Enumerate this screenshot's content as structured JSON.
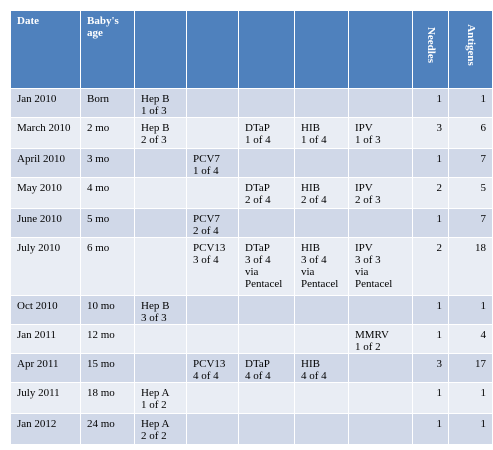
{
  "headers": [
    "Date",
    "Baby's age",
    "",
    "",
    "",
    "",
    "",
    "Needles",
    "Antigens"
  ],
  "rows": [
    [
      "Jan 2010",
      "Born",
      "Hep B\n1 of 3",
      "",
      "",
      "",
      "",
      "1",
      "1"
    ],
    [
      "March 2010",
      "2 mo",
      "Hep B\n2 of 3",
      "",
      "DTaP\n1 of 4",
      "HIB\n1 of 4",
      "IPV\n1 of 3",
      "3",
      "6"
    ],
    [
      "April 2010",
      "3 mo",
      "",
      "PCV7\n1 of 4",
      "",
      "",
      "",
      "1",
      "7"
    ],
    [
      "May 2010",
      "4 mo",
      "",
      "",
      "DTaP\n2 of 4",
      "HIB\n2 of 4",
      "IPV\n2 of 3",
      "2",
      "5"
    ],
    [
      "June 2010",
      "5 mo",
      "",
      "PCV7\n2 of 4",
      "",
      "",
      "",
      "1",
      "7"
    ],
    [
      "July 2010",
      "6 mo",
      "",
      "PCV13\n3 of 4",
      "DTaP\n3 of 4\nvia\nPentacel",
      "HIB\n3 of 4\nvia\nPentacel",
      "IPV\n3 of 3\nvia\nPentacel",
      "2",
      "18"
    ],
    [
      "Oct 2010",
      "10 mo",
      "Hep B\n3 of 3",
      "",
      "",
      "",
      "",
      "1",
      "1"
    ],
    [
      "Jan 2011",
      "12 mo",
      "",
      "",
      "",
      "",
      "MMRV\n1 of 2",
      "1",
      "4"
    ],
    [
      "Apr 2011",
      "15 mo",
      "",
      "PCV13\n4 of 4",
      "DTaP\n4 of 4",
      "HIB\n4 of 4",
      "",
      "3",
      "17"
    ],
    [
      "July 2011",
      "18 mo",
      "Hep A\n1 of 2",
      "",
      "",
      "",
      "",
      "1",
      "1"
    ],
    [
      "Jan 2012",
      "24 mo",
      "Hep A\n2 of 2",
      "",
      "",
      "",
      "",
      "1",
      "1"
    ]
  ]
}
